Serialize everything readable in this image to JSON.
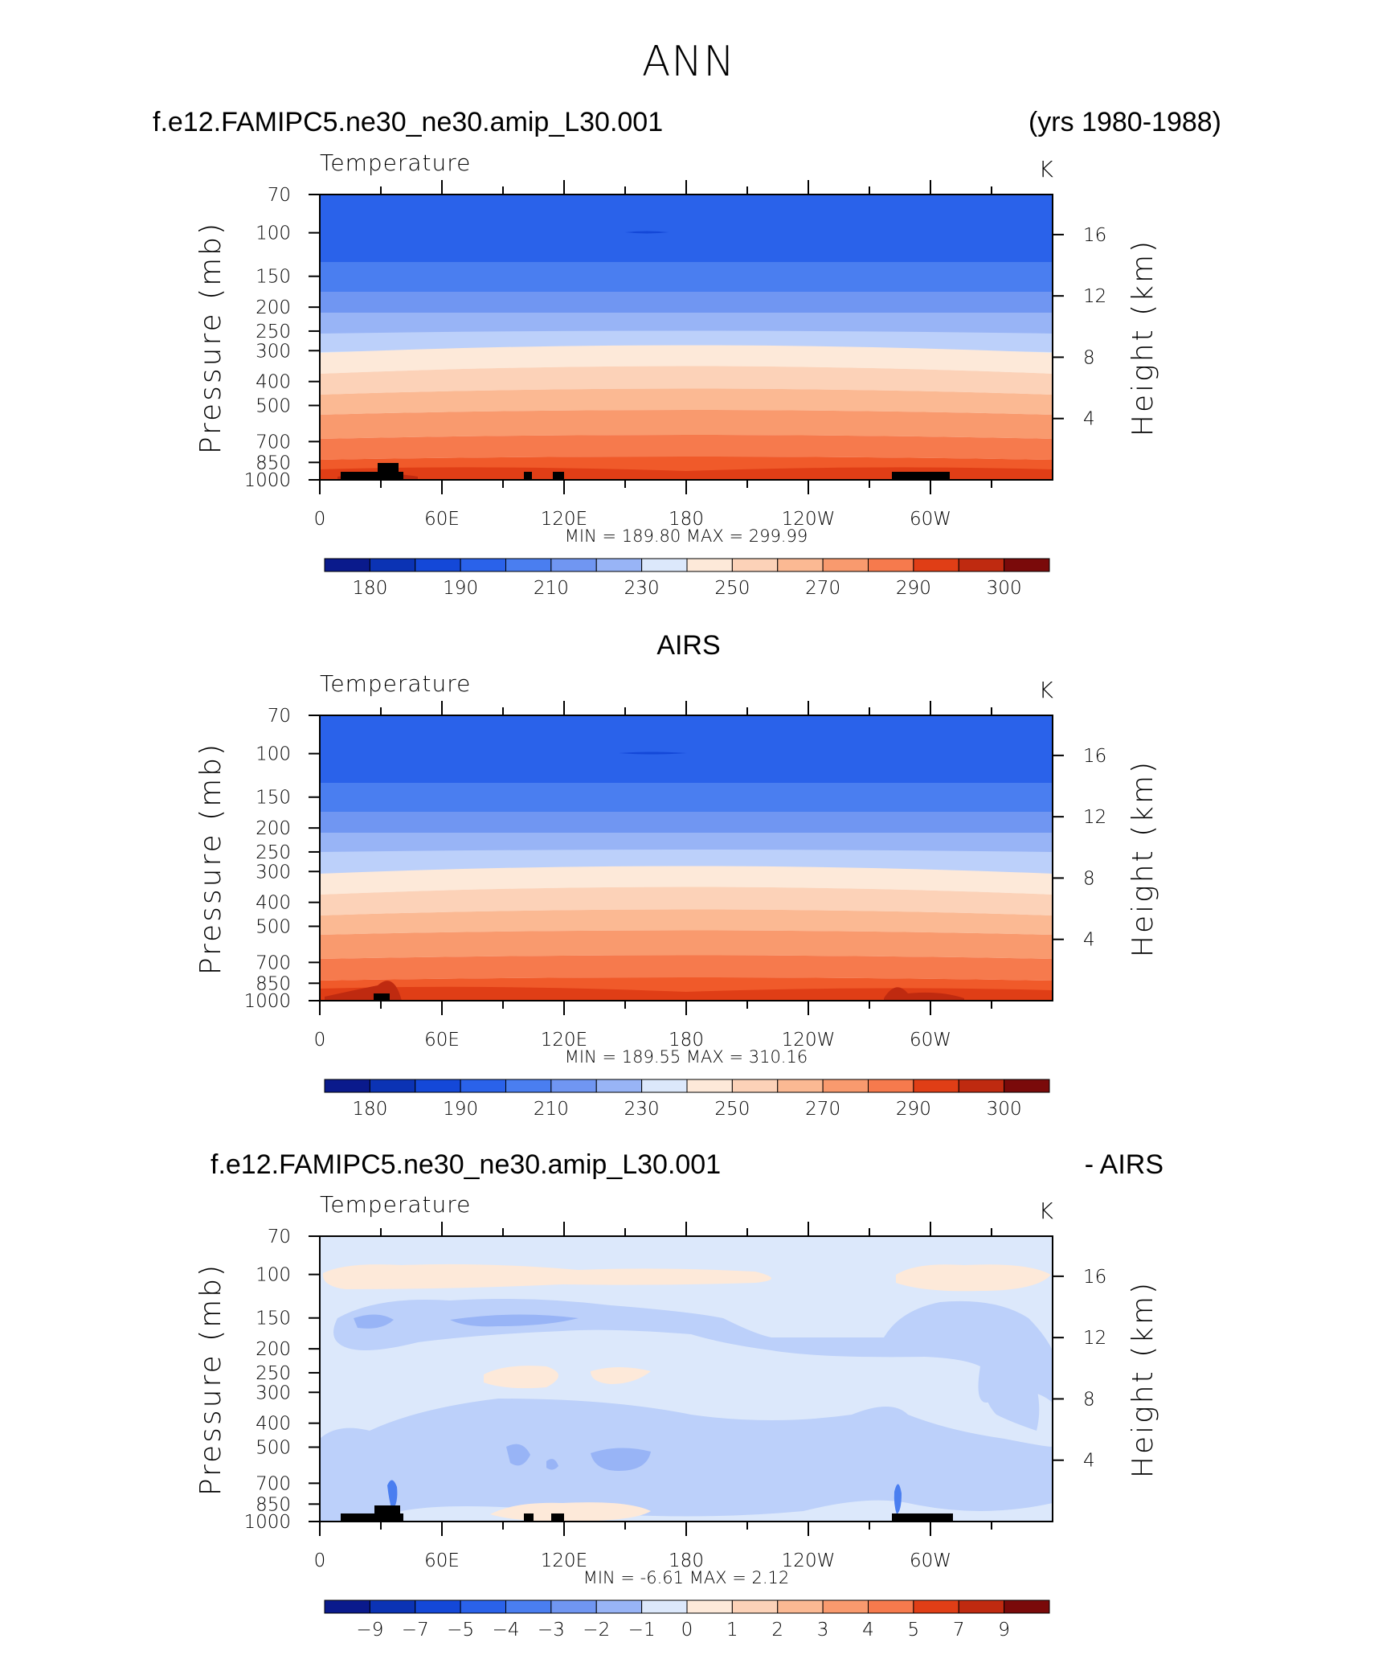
{
  "figure": {
    "title": "ANN",
    "case_name": "f.e12.FAMIPC5.ne30_ne30.amip_L30.001",
    "years": "(yrs 1980-1988)",
    "obs_title": "AIRS",
    "diff_case": "f.e12.FAMIPC5.ne30_ne30.amip_L30.001",
    "diff_suffix": "- AIRS"
  },
  "colors": {
    "temperature_palette": [
      "#0a1a8c",
      "#0b33b4",
      "#1448d8",
      "#2a62ea",
      "#4a7ef0",
      "#7096f2",
      "#98b4f6",
      "#bcd0fa",
      "#dce8fb",
      "#fde9d9",
      "#fcd2b8",
      "#fbb993",
      "#f99a6e",
      "#f67a4d",
      "#f05a2a",
      "#e03e16",
      "#bf2a10",
      "#95120c",
      "#7a0a0a"
    ],
    "difference_palette": [
      "#0a1a8c",
      "#0b33b4",
      "#1448d8",
      "#2a62ea",
      "#4a7ef0",
      "#7096f2",
      "#98b4f6",
      "#bcd0fa",
      "#dce8fb",
      "#fde9d9",
      "#fcd2b8",
      "#fbb993",
      "#f99a6e",
      "#f67a4d",
      "#f05a2a",
      "#e03e16",
      "#bf2a10",
      "#95120c",
      "#7a0a0a"
    ]
  },
  "chart_data": [
    {
      "type": "heatmap",
      "title": "Temperature",
      "units": "K",
      "ylabel": "Pressure (mb)",
      "ylabel_right": "Height (km)",
      "x_ticks": [
        "0",
        "60E",
        "120E",
        "180",
        "120W",
        "60W"
      ],
      "y_ticks": [
        70,
        100,
        150,
        200,
        250,
        300,
        400,
        500,
        700,
        850,
        1000
      ],
      "y_ticks_right": [
        16,
        12,
        8,
        4
      ],
      "stats_text": "MIN = 189.80 MAX = 299.99",
      "colorbar_labels": [
        "180",
        "190",
        "210",
        "230",
        "250",
        "270",
        "290",
        "300"
      ],
      "profile_K": [
        [
          70,
          205
        ],
        [
          100,
          199
        ],
        [
          150,
          211
        ],
        [
          200,
          219
        ],
        [
          250,
          229
        ],
        [
          300,
          238
        ],
        [
          400,
          252
        ],
        [
          500,
          263
        ],
        [
          700,
          279
        ],
        [
          850,
          288
        ],
        [
          1000,
          293
        ]
      ]
    },
    {
      "type": "heatmap",
      "title": "Temperature",
      "units": "K",
      "ylabel": "Pressure (mb)",
      "ylabel_right": "Height (km)",
      "x_ticks": [
        "0",
        "60E",
        "120E",
        "180",
        "120W",
        "60W"
      ],
      "y_ticks": [
        70,
        100,
        150,
        200,
        250,
        300,
        400,
        500,
        700,
        850,
        1000
      ],
      "y_ticks_right": [
        16,
        12,
        8,
        4
      ],
      "stats_text": "MIN = 189.55 MAX = 310.16",
      "colorbar_labels": [
        "180",
        "190",
        "210",
        "230",
        "250",
        "270",
        "290",
        "300"
      ],
      "profile_K": [
        [
          70,
          205
        ],
        [
          100,
          199
        ],
        [
          150,
          211
        ],
        [
          200,
          219
        ],
        [
          250,
          229
        ],
        [
          300,
          238
        ],
        [
          400,
          252
        ],
        [
          500,
          263
        ],
        [
          700,
          279
        ],
        [
          850,
          288
        ],
        [
          1000,
          294
        ]
      ]
    },
    {
      "type": "heatmap",
      "title": "Temperature",
      "units": "K",
      "ylabel": "Pressure (mb)",
      "ylabel_right": "Height (km)",
      "x_ticks": [
        "0",
        "60E",
        "120E",
        "180",
        "120W",
        "60W"
      ],
      "y_ticks": [
        70,
        100,
        150,
        200,
        250,
        300,
        400,
        500,
        700,
        850,
        1000
      ],
      "y_ticks_right": [
        16,
        12,
        8,
        4
      ],
      "stats_text": "MIN = -6.61 MAX = 2.12",
      "colorbar_labels": [
        "-9",
        "-7",
        "-5",
        "-4",
        "-3",
        "-2",
        "-1",
        "0",
        "1",
        "2",
        "3",
        "4",
        "5",
        "7",
        "9"
      ]
    }
  ]
}
